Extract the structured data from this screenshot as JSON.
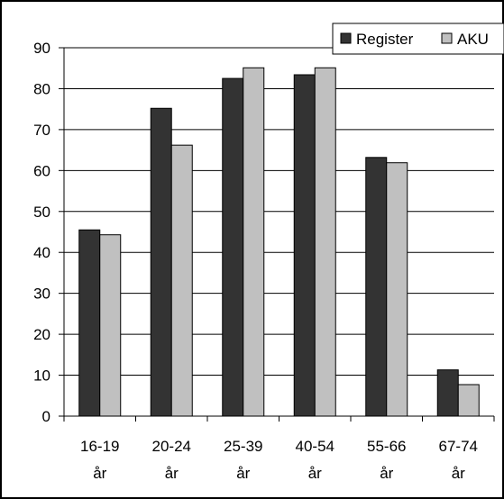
{
  "chart_data": {
    "type": "bar",
    "categories": [
      [
        "16-19",
        "år"
      ],
      [
        "20-24",
        "år"
      ],
      [
        "25-39",
        "år"
      ],
      [
        "40-54",
        "år"
      ],
      [
        "55-66",
        "år"
      ],
      [
        "67-74",
        "år"
      ]
    ],
    "series": [
      {
        "name": "Register",
        "color": "#333333",
        "values": [
          45.5,
          75.2,
          82.5,
          83.4,
          63.2,
          11.3
        ]
      },
      {
        "name": "AKU",
        "color": "#c0c0c0",
        "values": [
          44.3,
          66.2,
          85.1,
          85.1,
          61.9,
          7.7
        ]
      }
    ],
    "yticks": [
      0,
      10,
      20,
      30,
      40,
      50,
      60,
      70,
      80,
      90
    ],
    "ylim": [
      0,
      90
    ],
    "grid": true,
    "legend_position": "top-right",
    "title": "",
    "xlabel": "",
    "ylabel": ""
  }
}
